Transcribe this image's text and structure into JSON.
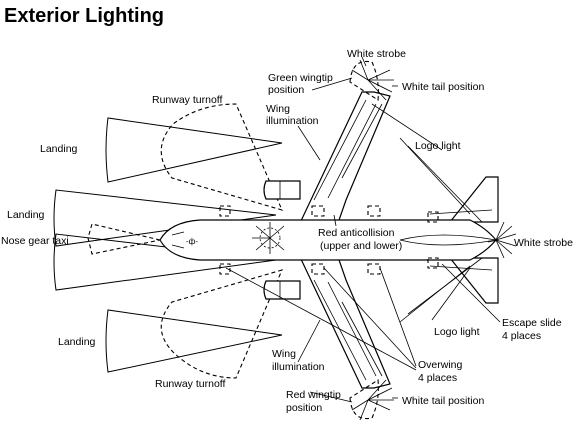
{
  "title": "Exterior Lighting",
  "labels": {
    "white_strobe_top": "White strobe",
    "green_wingtip_1": "Green wingtip",
    "green_wingtip_2": "position",
    "white_tail_top": "White tail position",
    "runway_turnoff_top": "Runway turnoff",
    "wing_illum_top_1": "Wing",
    "wing_illum_top_2": "illumination",
    "logo_light_top": "Logo light",
    "landing_1": "Landing",
    "landing_2": "Landing",
    "nose_gear_taxi": "Nose gear taxi",
    "red_anticollision_1": "Red anticollision",
    "red_anticollision_2": "(upper and lower)",
    "white_strobe_tail": "White strobe",
    "landing_3": "Landing",
    "logo_light_bottom": "Logo light",
    "escape_slide_1": "Escape slide",
    "escape_slide_2": "4 places",
    "wing_illum_bottom_1": "Wing",
    "wing_illum_bottom_2": "illumination",
    "overwing_1": "Overwing",
    "overwing_2": "4 places",
    "runway_turnoff_bottom": "Runway turnoff",
    "red_wingtip_1": "Red wingtip",
    "red_wingtip_2": "position",
    "white_tail_bottom": "White tail position"
  }
}
